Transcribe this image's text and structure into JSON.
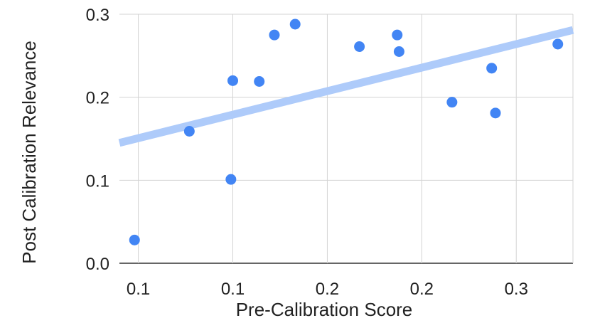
{
  "chart_data": {
    "type": "scatter",
    "title": "",
    "xlabel": "Pre-Calibration Score",
    "ylabel": "Post Calibration Relevance",
    "xlim": [
      0.08,
      0.32
    ],
    "ylim": [
      0.0,
      0.3
    ],
    "x_ticks": [
      {
        "value": 0.09,
        "label": "0.1"
      },
      {
        "value": 0.14,
        "label": "0.1"
      },
      {
        "value": 0.19,
        "label": "0.2"
      },
      {
        "value": 0.24,
        "label": "0.2"
      },
      {
        "value": 0.29,
        "label": "0.3"
      }
    ],
    "y_ticks": [
      {
        "value": 0.0,
        "label": "0.0"
      },
      {
        "value": 0.1,
        "label": "0.1"
      },
      {
        "value": 0.2,
        "label": "0.2"
      },
      {
        "value": 0.3,
        "label": "0.3"
      }
    ],
    "grid": true,
    "series": [
      {
        "name": "Post Calibration Relevance",
        "color": "#4285f4",
        "points": [
          {
            "x": 0.088,
            "y": 0.028
          },
          {
            "x": 0.117,
            "y": 0.159
          },
          {
            "x": 0.139,
            "y": 0.101
          },
          {
            "x": 0.14,
            "y": 0.22
          },
          {
            "x": 0.154,
            "y": 0.219
          },
          {
            "x": 0.162,
            "y": 0.275
          },
          {
            "x": 0.173,
            "y": 0.288
          },
          {
            "x": 0.207,
            "y": 0.261
          },
          {
            "x": 0.227,
            "y": 0.275
          },
          {
            "x": 0.228,
            "y": 0.255
          },
          {
            "x": 0.256,
            "y": 0.194
          },
          {
            "x": 0.277,
            "y": 0.235
          },
          {
            "x": 0.279,
            "y": 0.181
          },
          {
            "x": 0.312,
            "y": 0.264
          }
        ]
      }
    ],
    "trendline": {
      "type": "linear",
      "color": "#aecbfa",
      "start": {
        "x": 0.08,
        "y": 0.145
      },
      "end": {
        "x": 0.32,
        "y": 0.281
      }
    }
  }
}
